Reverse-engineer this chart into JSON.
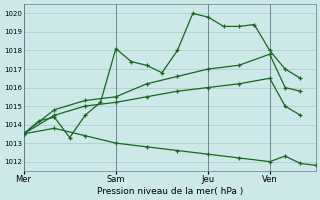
{
  "xlabel": "Pression niveau de la mer( hPa )",
  "ylim": [
    1011.5,
    1020.5
  ],
  "yticks": [
    1012,
    1013,
    1014,
    1015,
    1016,
    1017,
    1018,
    1019,
    1020
  ],
  "bg_color": "#cce8e8",
  "grid_color": "#aacccc",
  "line_color": "#1a6620",
  "vline_color": "#667788",
  "xtick_labels": [
    "Mer",
    "Sam",
    "Jeu",
    "Ven"
  ],
  "xtick_positions": [
    0,
    24,
    48,
    64
  ],
  "xlim": [
    0,
    76
  ],
  "series1_x": [
    0,
    4,
    8,
    12,
    16,
    20,
    24,
    28,
    32,
    36,
    40,
    44,
    48,
    52,
    56,
    60,
    64,
    68,
    72
  ],
  "series1_y": [
    1013.5,
    1014.2,
    1014.4,
    1013.3,
    1014.5,
    1015.2,
    1018.1,
    1017.4,
    1017.2,
    1016.8,
    1018.0,
    1020.0,
    1019.8,
    1019.3,
    1019.3,
    1019.4,
    1018.0,
    1017.0,
    1016.5
  ],
  "series2_x": [
    0,
    8,
    16,
    24,
    32,
    40,
    48,
    56,
    64,
    68,
    72
  ],
  "series2_y": [
    1013.5,
    1014.8,
    1015.3,
    1015.5,
    1016.2,
    1016.6,
    1017.0,
    1017.2,
    1017.8,
    1016.0,
    1015.8
  ],
  "series3_x": [
    0,
    8,
    16,
    24,
    32,
    40,
    48,
    56,
    64,
    68,
    72
  ],
  "series3_y": [
    1013.5,
    1014.5,
    1015.0,
    1015.2,
    1015.5,
    1015.8,
    1016.0,
    1016.2,
    1016.5,
    1015.0,
    1014.5
  ],
  "series4_x": [
    0,
    8,
    16,
    24,
    32,
    40,
    48,
    56,
    64,
    68,
    72,
    76
  ],
  "series4_y": [
    1013.5,
    1013.8,
    1013.4,
    1013.0,
    1012.8,
    1012.6,
    1012.4,
    1012.2,
    1012.0,
    1012.3,
    1011.9,
    1011.8
  ]
}
